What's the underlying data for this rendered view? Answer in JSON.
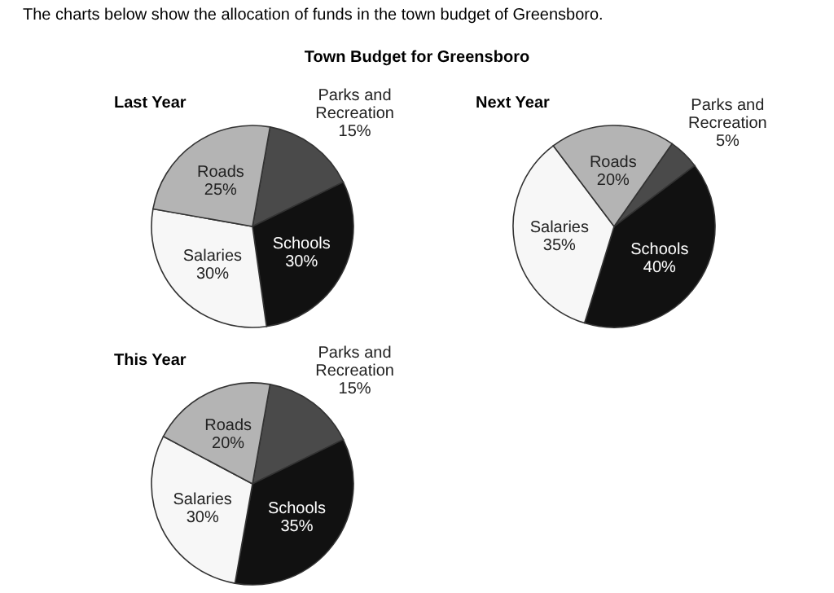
{
  "chart_data": [
    {
      "type": "pie",
      "title": "Last Year",
      "subtitle": "Town Budget for Greensboro",
      "annotations": [
        "The charts below show the allocation of funds in the town budget of Greensboro."
      ],
      "categories": [
        "Parks and Recreation",
        "Schools",
        "Salaries",
        "Roads"
      ],
      "values": [
        15,
        30,
        30,
        25
      ],
      "value_labels": [
        "15%",
        "30%",
        "30%",
        "25%"
      ],
      "colors": [
        "#4a4a4a",
        "#111111",
        "#f7f7f7",
        "#b4b4b4"
      ],
      "legend": false
    },
    {
      "type": "pie",
      "title": "Next Year",
      "categories": [
        "Parks and Recreation",
        "Schools",
        "Salaries",
        "Roads"
      ],
      "values": [
        5,
        40,
        35,
        20
      ],
      "value_labels": [
        "5%",
        "40%",
        "35%",
        "20%"
      ],
      "colors": [
        "#4a4a4a",
        "#111111",
        "#f7f7f7",
        "#b4b4b4"
      ],
      "legend": false
    },
    {
      "type": "pie",
      "title": "This Year",
      "categories": [
        "Parks and Recreation",
        "Schools",
        "Salaries",
        "Roads"
      ],
      "values": [
        15,
        35,
        30,
        20
      ],
      "value_labels": [
        "15%",
        "35%",
        "30%",
        "20%"
      ],
      "colors": [
        "#4a4a4a",
        "#111111",
        "#f7f7f7",
        "#b4b4b4"
      ],
      "legend": false
    }
  ]
}
